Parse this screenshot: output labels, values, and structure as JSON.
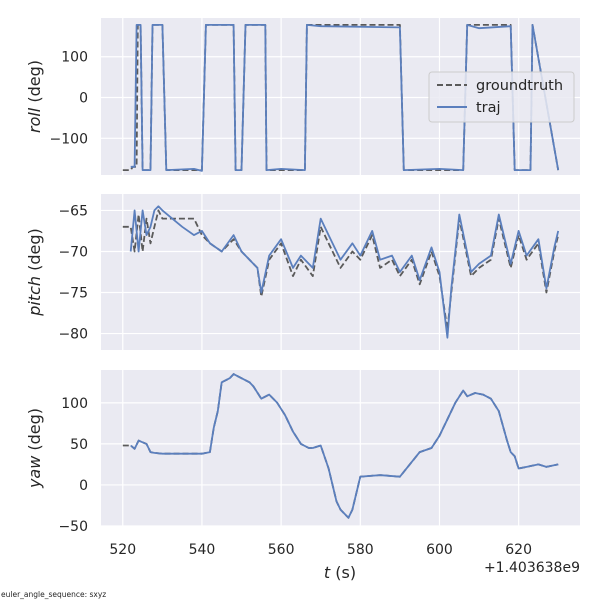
{
  "footer_note": "euler_angle_sequence: sxyz",
  "chart_data": {
    "type": "line",
    "x_offset_label": "+1.403638e9",
    "xlabel": {
      "var": "t",
      "unit": "(s)"
    },
    "xlim": [
      514.5,
      635.5
    ],
    "xticks": [
      520,
      540,
      560,
      580,
      600,
      620
    ],
    "legend": {
      "position": "right",
      "entries": [
        {
          "name": "groundtruth",
          "style": "dashed",
          "color": "#5a5a5a"
        },
        {
          "name": "traj",
          "style": "solid",
          "color": "#5b7fbd"
        }
      ]
    },
    "panels": [
      {
        "ylabel": {
          "var": "roll",
          "unit": "(deg)"
        },
        "ylim": [
          -190,
          195
        ],
        "yticks": [
          -100,
          0,
          100
        ],
        "series": {
          "groundtruth": {
            "x": [
              520,
              522,
              522.5,
              523.5,
              523.8,
              524.5,
              525,
              527,
              527.5,
              530,
              531,
              540,
              541,
              548,
              548.5,
              550,
              551,
              556,
              556.3,
              566,
              566.5,
              590,
              591,
              606,
              607,
              618,
              619,
              623,
              623.5,
              630
            ],
            "y": [
              -178,
              -178,
              -170,
              -170,
              178,
              178,
              -178,
              -178,
              178,
              178,
              -178,
              -178,
              178,
              178,
              -178,
              -178,
              178,
              178,
              -178,
              -178,
              178,
              178,
              -178,
              -178,
              178,
              178,
              -178,
              -178,
              178,
              -178
            ]
          },
          "traj": {
            "x": [
              522,
              523,
              523.5,
              524.5,
              525,
              527,
              527.5,
              530,
              531,
              538,
              540,
              541,
              548,
              548.5,
              550,
              551,
              556,
              556.3,
              560,
              566,
              566.5,
              570,
              590,
              591,
              600,
              606,
              607,
              610,
              618,
              619,
              623,
              623.5,
              630
            ],
            "y": [
              -170,
              -170,
              178,
              178,
              -178,
              -178,
              178,
              178,
              -178,
              -175,
              -180,
              178,
              178,
              -178,
              -178,
              178,
              178,
              -178,
              -175,
              -178,
              178,
              175,
              172,
              -178,
              -175,
              -178,
              178,
              170,
              175,
              -178,
              -178,
              178,
              -178
            ]
          }
        }
      },
      {
        "ylabel": {
          "var": "pitch",
          "unit": "(deg)"
        },
        "ylim": [
          -82,
          -63
        ],
        "yticks": [
          -80,
          -75,
          -70,
          -65
        ],
        "series": {
          "groundtruth": {
            "x": [
              520,
              522,
              523,
              524,
              525,
              526,
              527,
              528,
              529,
              530,
              535,
              538,
              540,
              542,
              545,
              548,
              550,
              552,
              554,
              555,
              557,
              560,
              563,
              565,
              568,
              570,
              572,
              575,
              578,
              580,
              583,
              585,
              588,
              590,
              593,
              595,
              598,
              600,
              602,
              603,
              605,
              608,
              610,
              613,
              615,
              618,
              620,
              622,
              625,
              627,
              629,
              630
            ],
            "y": [
              -67,
              -67,
              -70,
              -65.5,
              -70,
              -66,
              -69,
              -67,
              -65,
              -66,
              -66,
              -66,
              -68,
              -69,
              -70,
              -68.5,
              -70,
              -71,
              -72,
              -75.5,
              -71,
              -69,
              -73,
              -71,
              -73,
              -67,
              -69,
              -72,
              -70,
              -71,
              -68,
              -72,
              -71,
              -73,
              -71,
              -74,
              -70,
              -73,
              -79.5,
              -75,
              -66,
              -73,
              -72,
              -71,
              -66,
              -72,
              -68,
              -71,
              -69,
              -75,
              -70,
              -68
            ]
          },
          "traj": {
            "x": [
              522,
              523,
              524,
              525,
              526,
              527,
              528,
              529,
              530,
              535,
              538,
              540,
              542,
              545,
              548,
              550,
              552,
              554,
              555,
              557,
              560,
              563,
              565,
              568,
              570,
              572,
              575,
              578,
              580,
              583,
              585,
              588,
              590,
              593,
              595,
              598,
              600,
              602,
              603,
              605,
              608,
              610,
              613,
              615,
              618,
              620,
              622,
              625,
              627,
              629,
              630
            ],
            "y": [
              -70,
              -65,
              -70,
              -65,
              -68,
              -67,
              -65,
              -64.5,
              -65,
              -67,
              -68,
              -67.5,
              -69,
              -70,
              -68,
              -70,
              -71,
              -72,
              -75,
              -70.5,
              -68.5,
              -72,
              -70.5,
              -72,
              -66,
              -68,
              -71,
              -69,
              -70.5,
              -67.5,
              -71,
              -70.5,
              -72.5,
              -70.5,
              -73.5,
              -69.5,
              -72.5,
              -80.5,
              -74.5,
              -65.5,
              -72.5,
              -71.5,
              -70.5,
              -65.5,
              -71.5,
              -67.5,
              -70.5,
              -68.5,
              -74.5,
              -69.5,
              -67.5
            ]
          }
        }
      },
      {
        "ylabel": {
          "var": "yaw",
          "unit": "(deg)"
        },
        "ylim": [
          -50,
          140
        ],
        "yticks": [
          -50,
          0,
          50,
          100
        ],
        "series": {
          "groundtruth": {
            "x": [
              520,
              522,
              523,
              524,
              525,
              526,
              527,
              528,
              530,
              535,
              540,
              542,
              543,
              544,
              545,
              547,
              548,
              550,
              552,
              553,
              555,
              557,
              559,
              561,
              563,
              565,
              567,
              568,
              570,
              572,
              574,
              575,
              577,
              578,
              580,
              585,
              590,
              595,
              598,
              600,
              602,
              604,
              606,
              607,
              609,
              611,
              613,
              615,
              617,
              618,
              619,
              620,
              622,
              625,
              627,
              630
            ],
            "y": [
              48,
              48,
              44,
              54,
              52,
              50,
              40,
              39,
              38,
              38,
              38,
              40,
              70,
              90,
              125,
              130,
              135,
              130,
              125,
              120,
              105,
              110,
              100,
              85,
              65,
              50,
              45,
              45,
              48,
              20,
              -20,
              -30,
              -40,
              -30,
              10,
              12,
              10,
              40,
              45,
              60,
              80,
              100,
              115,
              108,
              112,
              110,
              105,
              90,
              55,
              40,
              35,
              20,
              22,
              25,
              22,
              25
            ]
          },
          "traj": {
            "x": [
              522,
              523,
              524,
              525,
              526,
              527,
              528,
              530,
              535,
              540,
              542,
              543,
              544,
              545,
              547,
              548,
              550,
              552,
              553,
              555,
              557,
              559,
              561,
              563,
              565,
              567,
              568,
              570,
              572,
              574,
              575,
              577,
              578,
              580,
              585,
              590,
              595,
              598,
              600,
              602,
              604,
              606,
              607,
              609,
              611,
              613,
              615,
              617,
              618,
              619,
              620,
              622,
              625,
              627,
              630
            ],
            "y": [
              48,
              44,
              54,
              52,
              50,
              40,
              39,
              38,
              38,
              38,
              40,
              70,
              90,
              125,
              130,
              135,
              130,
              125,
              120,
              105,
              110,
              100,
              85,
              65,
              50,
              45,
              45,
              48,
              20,
              -20,
              -30,
              -40,
              -30,
              10,
              12,
              10,
              40,
              45,
              60,
              80,
              100,
              115,
              108,
              112,
              110,
              105,
              90,
              55,
              40,
              35,
              20,
              22,
              25,
              22,
              25
            ]
          }
        }
      }
    ]
  }
}
